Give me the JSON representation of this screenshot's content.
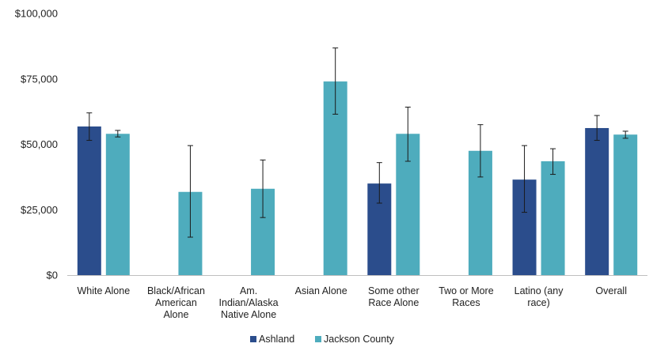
{
  "chart_data": {
    "type": "bar",
    "title": "",
    "xlabel": "",
    "ylabel": "",
    "ylim": [
      0,
      100000
    ],
    "yticks": [
      "$0",
      "$25,000",
      "$50,000",
      "$75,000",
      "$100,000"
    ],
    "ytick_values": [
      0,
      25000,
      50000,
      75000,
      100000
    ],
    "categories": [
      [
        "White Alone"
      ],
      [
        "Black/African",
        "American",
        "Alone"
      ],
      [
        "Am.",
        "Indian/Alaska",
        "Native Alone"
      ],
      [
        "Asian Alone"
      ],
      [
        "Some other",
        "Race Alone"
      ],
      [
        "Two or More",
        "Races"
      ],
      [
        "Latino (any",
        "race)"
      ],
      [
        "Overall"
      ]
    ],
    "series": [
      {
        "name": "Ashland",
        "color": "#2b4d8c",
        "values": [
          56800,
          null,
          null,
          null,
          35000,
          null,
          36500,
          56200
        ],
        "error_low": [
          51500,
          null,
          null,
          null,
          27500,
          null,
          24000,
          51500
        ],
        "error_high": [
          62000,
          null,
          null,
          null,
          43000,
          null,
          49500,
          61000
        ]
      },
      {
        "name": "Jackson County",
        "color": "#4eacbd",
        "values": [
          54000,
          31800,
          33000,
          74000,
          54000,
          47500,
          43500,
          53700
        ],
        "error_low": [
          52800,
          14500,
          22000,
          61500,
          43500,
          37500,
          38500,
          52300
        ],
        "error_high": [
          55300,
          49500,
          44000,
          86800,
          64200,
          57500,
          48300,
          55000
        ]
      }
    ],
    "grid": false,
    "legend_position": "bottom"
  }
}
